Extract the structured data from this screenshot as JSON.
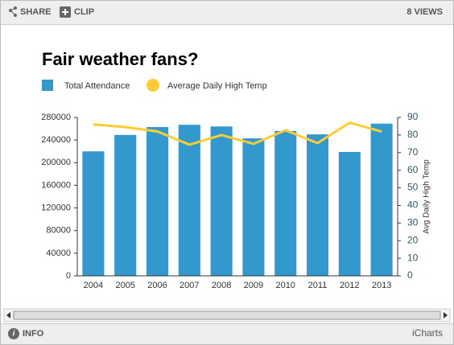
{
  "toolbar": {
    "share": "SHARE",
    "clip": "CLIP",
    "views": "8 VIEWS"
  },
  "footer": {
    "info": "INFO",
    "brand": "iCharts"
  },
  "chart_data": {
    "type": "bar_line",
    "title": "Fair weather fans?",
    "categories": [
      "2004",
      "2005",
      "2006",
      "2007",
      "2008",
      "2009",
      "2010",
      "2011",
      "2012",
      "2013"
    ],
    "series": [
      {
        "name": "Total Attendance",
        "type": "bar",
        "color": "#3399cc",
        "values": [
          220000,
          249000,
          263000,
          267000,
          264000,
          243000,
          256000,
          250000,
          219000,
          269000
        ]
      },
      {
        "name": "Average Daily High Temp",
        "type": "line",
        "axis": "y2",
        "color": "#ffcc33",
        "values": [
          86,
          84.5,
          82,
          74.5,
          80,
          75,
          82.7,
          75.4,
          87,
          82
        ]
      }
    ],
    "ylim": [
      0,
      280000
    ],
    "yticks": [
      0,
      40000,
      80000,
      120000,
      160000,
      200000,
      240000,
      280000
    ],
    "y2lim": [
      0,
      90
    ],
    "y2ticks": [
      0,
      10,
      20,
      30,
      40,
      50,
      60,
      70,
      80,
      90
    ],
    "y2label": "Avg Daily High Temp",
    "legend": "top-left",
    "grid": false
  }
}
